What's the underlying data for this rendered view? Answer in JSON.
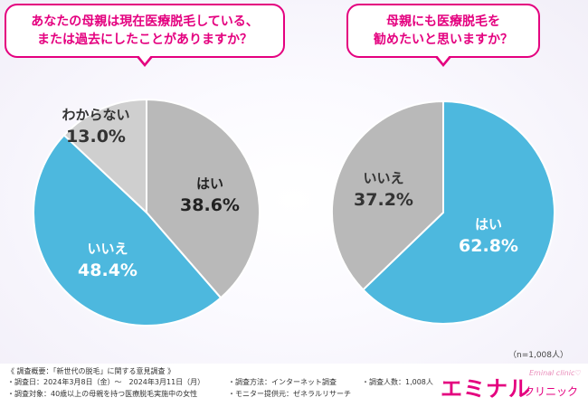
{
  "questions": {
    "left": {
      "line1": "あなたの母親は現在医療脱毛している、",
      "line2": "または過去にしたことがありますか？"
    },
    "right": {
      "line1": "母親にも医療脱毛を",
      "line2": "勧めたいと思いますか？"
    }
  },
  "colors": {
    "yes": "#4db8de",
    "no_gray": "#b9b9b9",
    "unknown": "#cfcfcf",
    "accent": "#e4007f"
  },
  "chart_data": [
    {
      "type": "pie",
      "title": "あなたの母親は現在医療脱毛している、または過去にしたことがありますか？",
      "slices": [
        {
          "label": "はい",
          "value": 38.6,
          "display": "38.6%"
        },
        {
          "label": "いいえ",
          "value": 48.4,
          "display": "48.4%"
        },
        {
          "label": "わからない",
          "value": 13.0,
          "display": "13.0%"
        }
      ]
    },
    {
      "type": "pie",
      "title": "母親にも医療脱毛を勧めたいと思いますか？",
      "slices": [
        {
          "label": "はい",
          "value": 62.8,
          "display": "62.8%"
        },
        {
          "label": "いいえ",
          "value": 37.2,
          "display": "37.2%"
        }
      ]
    }
  ],
  "sample_note": "（n=1,008人）",
  "footer": {
    "title": "《 調査概要：「新世代の脱毛」に関する意見調査 》",
    "date": "・調査日：2024年3月8日（金）〜　2024年3月11日（月）",
    "target": "・調査対象：40歳以上の母親を持つ医療脱毛実施中の女性",
    "method": "・調査方法：インターネット調査",
    "provider": "・モニター提供元：ゼネラルリサーチ",
    "count": "・調査人数：1,008人"
  },
  "brand": {
    "main": "エミナル",
    "sub": "クリニック",
    "en": "Eminal clinic♡"
  }
}
